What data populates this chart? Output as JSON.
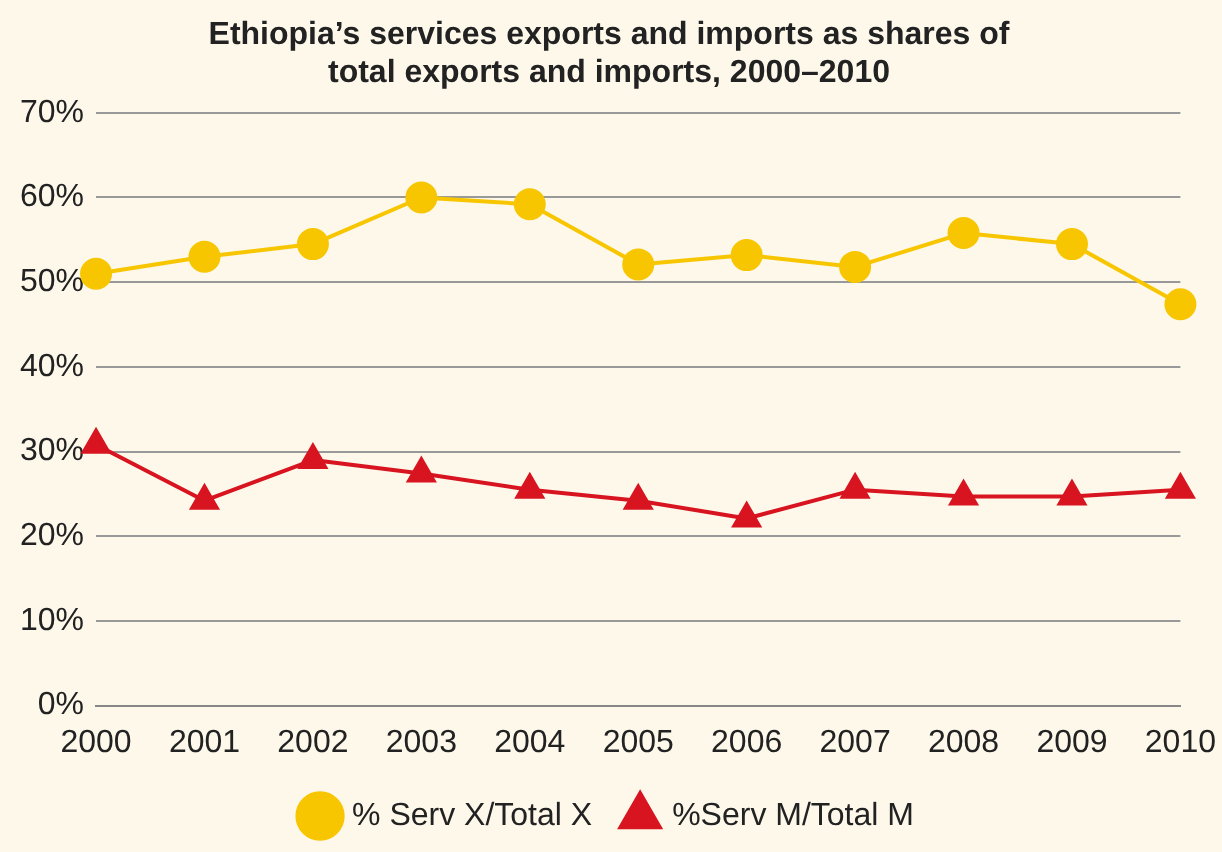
{
  "chart_data": {
    "type": "line",
    "title": "Ethiopia’s services exports and imports as shares of\ntotal exports and imports, 2000–2010",
    "categories": [
      "2000",
      "2001",
      "2002",
      "2003",
      "2004",
      "2005",
      "2006",
      "2007",
      "2008",
      "2009",
      "2010"
    ],
    "series": [
      {
        "name": "% Serv X/Total X",
        "color": "#f7c600",
        "marker": "circle",
        "values": [
          51,
          53,
          54.5,
          60,
          59.2,
          52.1,
          53.2,
          51.8,
          55.8,
          54.5,
          47.4
        ]
      },
      {
        "name": "%Serv M/Total M",
        "color": "#d7141f",
        "marker": "triangle",
        "values": [
          30.8,
          24.2,
          29,
          27.4,
          25.5,
          24.2,
          22.1,
          25.5,
          24.7,
          24.7,
          25.5
        ]
      }
    ],
    "ylim": [
      0,
      70
    ],
    "yticks": [
      {
        "value": 0,
        "label": "0%"
      },
      {
        "value": 10,
        "label": "10%"
      },
      {
        "value": 20,
        "label": "20%"
      },
      {
        "value": 30,
        "label": "30%"
      },
      {
        "value": 40,
        "label": "40%"
      },
      {
        "value": 50,
        "label": "50%"
      },
      {
        "value": 60,
        "label": "60%"
      },
      {
        "value": 70,
        "label": "70%"
      }
    ],
    "grid": "y",
    "legend": "bottom",
    "line_style": "solid"
  }
}
